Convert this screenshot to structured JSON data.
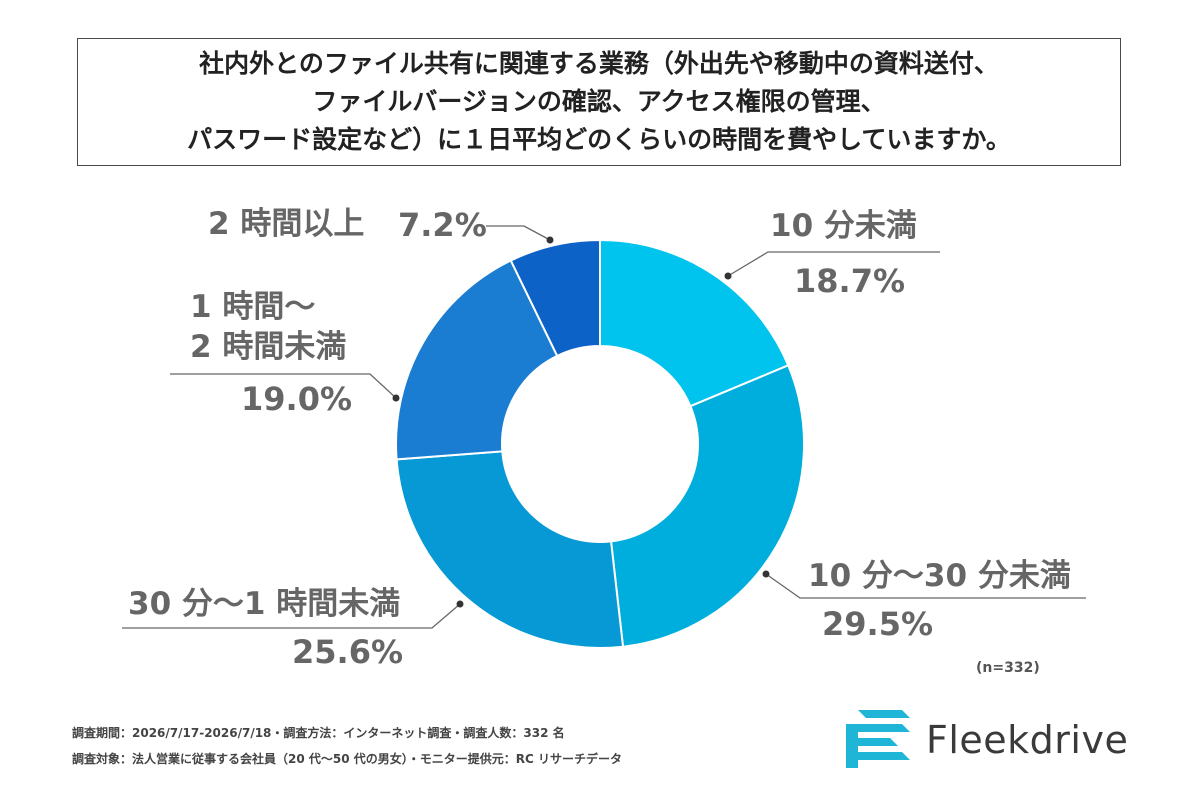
{
  "title_lines": [
    "社内外とのファイル共有に関連する業務（外出先や移動中の資料送付、",
    "ファイルバージョンの確認、アクセス権限の管理、",
    "パスワード設定など）に１日平均どのくらいの時間を費やしていますか。"
  ],
  "chart_data": {
    "type": "pie",
    "donut": true,
    "title": "社内外とのファイル共有に関連する業務（外出先や移動中の資料送付、ファイルバージョンの確認、アクセス権限の管理、パスワード設定など）に１日平均どのくらいの時間を費やしていますか。",
    "categories": [
      "10分未満",
      "10分～30分未満",
      "30分～1時間未満",
      "1時間～2時間未満",
      "2時間以上"
    ],
    "values": [
      18.7,
      29.5,
      25.6,
      19.0,
      7.2
    ],
    "value_labels": [
      "18.7%",
      "29.5%",
      "25.6%",
      "19.0%",
      "7.2%"
    ],
    "colors": [
      "#00c3ee",
      "#00aedd",
      "#0798d6",
      "#1a7dd2",
      "#0d62c8"
    ],
    "label_lines": [
      [
        "10 分未満"
      ],
      [
        "10 分～30 分未満"
      ],
      [
        "30 分～1 時間未満"
      ],
      [
        "1 時間～",
        "2 時間未満"
      ],
      [
        "2 時間以上"
      ]
    ],
    "sample_size_label": "(n=332)"
  },
  "footnotes": [
    "調査期間：2026/7/17-2026/7/18・調査方法：インターネット調査・調査人数：332 名",
    "調査対象：法人営業に従事する会社員（20 代～50 代の男女）・モニター提供元：RC リサーチデータ"
  ],
  "brand": {
    "name": "Fleekdrive",
    "logo_icon": "fleekdrive-logo-icon",
    "logo_color": "#1fb5d6"
  }
}
